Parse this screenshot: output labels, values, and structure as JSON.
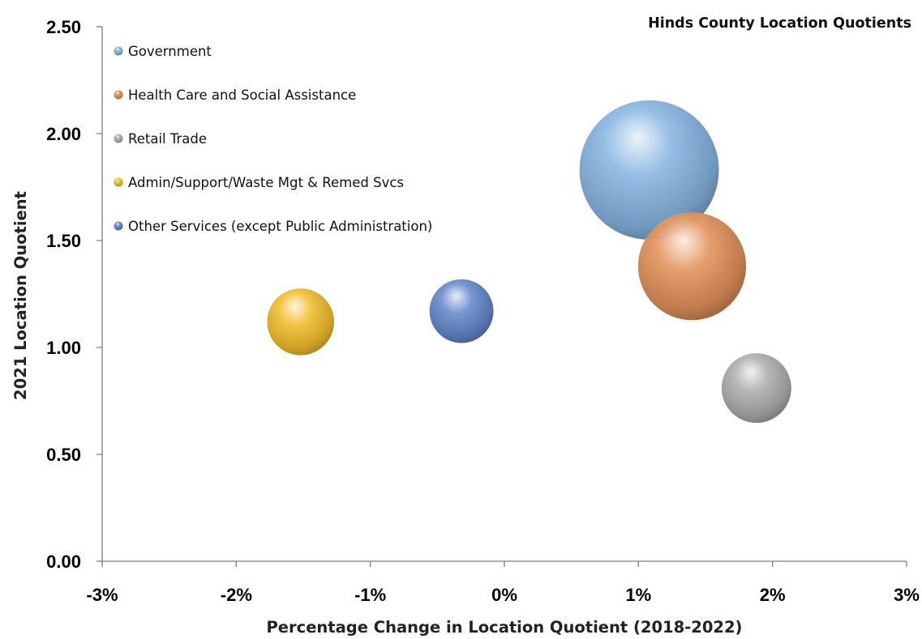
{
  "chart_data": {
    "type": "bubble",
    "title": "Hinds County Location Quotients",
    "xlabel": "Percentage Change in Location Quotient (2018-2022)",
    "ylabel": "2021 Location Quotient",
    "xlim": [
      -3,
      3
    ],
    "ylim": [
      0,
      2.5
    ],
    "x_ticks": [
      -3,
      -2,
      -1,
      0,
      1,
      2,
      3
    ],
    "x_tick_labels": [
      "-3%",
      "-2%",
      "-1%",
      "0%",
      "1%",
      "2%",
      "3%"
    ],
    "y_ticks": [
      0,
      0.5,
      1.0,
      1.5,
      2.0,
      2.5
    ],
    "y_tick_labels": [
      "0.00",
      "0.50",
      "1.00",
      "1.50",
      "2.00",
      "2.50"
    ],
    "grid": false,
    "legend_position": "top-left",
    "series": [
      {
        "name": "Government",
        "x": 1.08,
        "y": 1.83,
        "size": 1.0,
        "color": "#7fb0e0"
      },
      {
        "name": "Health Care and Social Assistance",
        "x": 1.4,
        "y": 1.38,
        "size": 0.6,
        "color": "#e08a50"
      },
      {
        "name": "Retail Trade",
        "x": 1.88,
        "y": 0.81,
        "size": 0.25,
        "color": "#a8a8a8"
      },
      {
        "name": "Admin/Support/Waste Mgt & Remed Svcs",
        "x": -1.52,
        "y": 1.12,
        "size": 0.23,
        "color": "#f0b820"
      },
      {
        "name": "Other Services (except Public Administration)",
        "x": -0.32,
        "y": 1.17,
        "size": 0.21,
        "color": "#5a80c8"
      }
    ]
  }
}
